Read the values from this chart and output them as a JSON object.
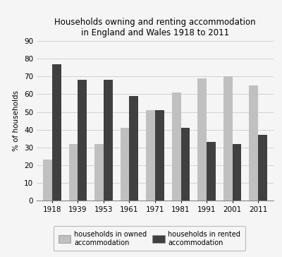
{
  "title": "Households owning and renting accommodation\nin England and Wales 1918 to 2011",
  "years": [
    "1918",
    "1939",
    "1953",
    "1961",
    "1971",
    "1981",
    "1991",
    "2001",
    "2011"
  ],
  "owned": [
    23,
    32,
    32,
    41,
    51,
    61,
    69,
    70,
    65
  ],
  "rented": [
    77,
    68,
    68,
    59,
    51,
    41,
    33,
    32,
    37
  ],
  "owned_color": "#c0c0c0",
  "rented_color": "#404040",
  "ylabel": "% of households",
  "ylim": [
    0,
    90
  ],
  "yticks": [
    0,
    10,
    20,
    30,
    40,
    50,
    60,
    70,
    80,
    90
  ],
  "bar_width": 0.35,
  "legend_owned": "households in owned\naccommodation",
  "legend_rented": "households in rented\naccommodation",
  "background_color": "#f5f5f5",
  "grid_color": "#cccccc",
  "title_fontsize": 8.5,
  "axis_fontsize": 7.5,
  "legend_fontsize": 7
}
